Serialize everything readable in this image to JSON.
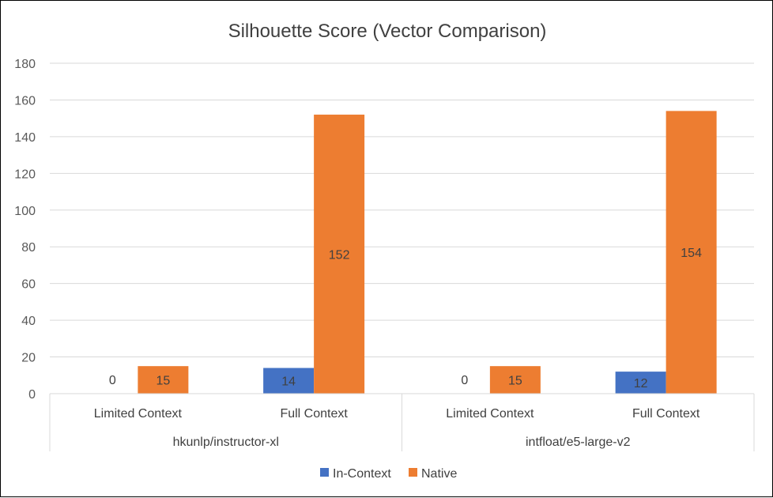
{
  "chart_data": {
    "type": "bar",
    "title": "Silhouette Score (Vector Comparison)",
    "groups": [
      {
        "label": "hkunlp/instructor-xl",
        "categories": [
          "Limited Context",
          "Full Context"
        ]
      },
      {
        "label": "intfloat/e5-large-v2",
        "categories": [
          "Limited Context",
          "Full Context"
        ]
      }
    ],
    "series": [
      {
        "name": "In-Context",
        "color": "#4472C4",
        "values": [
          0,
          14,
          0,
          12
        ]
      },
      {
        "name": "Native",
        "color": "#ED7D31",
        "values": [
          15,
          152,
          15,
          154
        ]
      }
    ],
    "yticks": [
      0,
      20,
      40,
      60,
      80,
      100,
      120,
      140,
      160,
      180
    ],
    "ylim": [
      0,
      180
    ],
    "grid": true,
    "legend_position": "bottom"
  }
}
